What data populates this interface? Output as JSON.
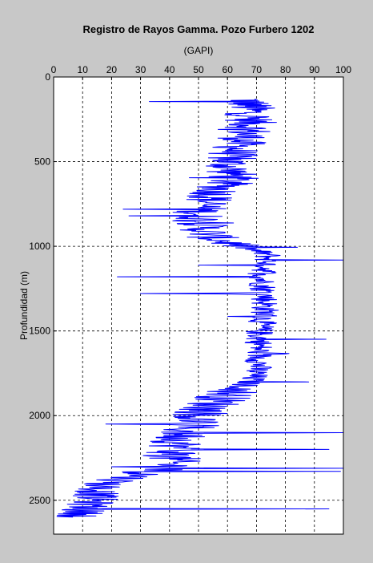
{
  "chart_data": {
    "type": "line",
    "title": "Registro de Rayos Gamma. Pozo Furbero 1202",
    "xlabel": "(GAPI)",
    "ylabel": "Profundidad (m)",
    "x_axis_position": "top",
    "xlim": [
      0,
      100
    ],
    "ylim": [
      0,
      2700
    ],
    "y_inverted": true,
    "x_ticks": [
      0,
      10,
      20,
      30,
      40,
      50,
      60,
      70,
      80,
      90,
      100
    ],
    "y_ticks": [
      0,
      500,
      1000,
      1500,
      2000,
      2500
    ],
    "grid": true,
    "series_color": "#0000ff",
    "series": [
      {
        "profile": [
          {
            "depth": 130,
            "gr": 67
          },
          {
            "depth": 200,
            "gr": 68
          },
          {
            "depth": 300,
            "gr": 68
          },
          {
            "depth": 400,
            "gr": 64
          },
          {
            "depth": 500,
            "gr": 60
          },
          {
            "depth": 600,
            "gr": 62
          },
          {
            "depth": 650,
            "gr": 58
          },
          {
            "depth": 700,
            "gr": 55
          },
          {
            "depth": 800,
            "gr": 50
          },
          {
            "depth": 900,
            "gr": 52
          },
          {
            "depth": 950,
            "gr": 55
          },
          {
            "depth": 1000,
            "gr": 65
          },
          {
            "depth": 1050,
            "gr": 74
          },
          {
            "depth": 1100,
            "gr": 74
          },
          {
            "depth": 1200,
            "gr": 72
          },
          {
            "depth": 1300,
            "gr": 73
          },
          {
            "depth": 1400,
            "gr": 73
          },
          {
            "depth": 1500,
            "gr": 71
          },
          {
            "depth": 1600,
            "gr": 71
          },
          {
            "depth": 1700,
            "gr": 71
          },
          {
            "depth": 1800,
            "gr": 68
          },
          {
            "depth": 1900,
            "gr": 58
          },
          {
            "depth": 2000,
            "gr": 50
          },
          {
            "depth": 2100,
            "gr": 45
          },
          {
            "depth": 2200,
            "gr": 42
          },
          {
            "depth": 2300,
            "gr": 40
          },
          {
            "depth": 2350,
            "gr": 30
          },
          {
            "depth": 2400,
            "gr": 18
          },
          {
            "depth": 2450,
            "gr": 15
          },
          {
            "depth": 2500,
            "gr": 14
          },
          {
            "depth": 2560,
            "gr": 10
          },
          {
            "depth": 2600,
            "gr": 9
          }
        ],
        "sample_step": 3,
        "peaks": [
          {
            "depth": 145,
            "gr": 33
          },
          {
            "depth": 780,
            "gr": 24
          },
          {
            "depth": 820,
            "gr": 26
          },
          {
            "depth": 1080,
            "gr": 100
          },
          {
            "depth": 1110,
            "gr": 50
          },
          {
            "depth": 1180,
            "gr": 22
          },
          {
            "depth": 1280,
            "gr": 30
          },
          {
            "depth": 1550,
            "gr": 94
          },
          {
            "depth": 1800,
            "gr": 88
          },
          {
            "depth": 2050,
            "gr": 18
          },
          {
            "depth": 2100,
            "gr": 100
          },
          {
            "depth": 2200,
            "gr": 95
          },
          {
            "depth": 2310,
            "gr": 100
          },
          {
            "depth": 2330,
            "gr": 99
          },
          {
            "depth": 2550,
            "gr": 95
          },
          {
            "depth": 2570,
            "gr": 6
          }
        ]
      }
    ]
  }
}
